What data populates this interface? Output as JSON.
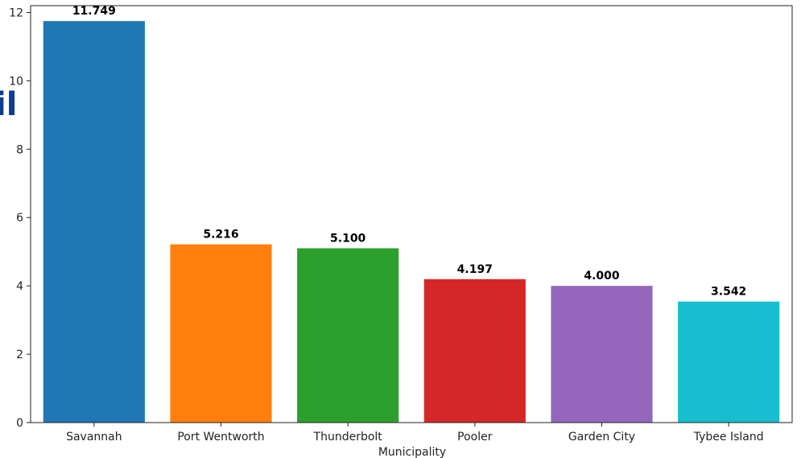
{
  "chart_data": {
    "type": "bar",
    "title": "",
    "xlabel": "Municipality",
    "ylabel": "",
    "categories": [
      "Savannah",
      "Port Wentworth",
      "Thunderbolt",
      "Pooler",
      "Garden City",
      "Tybee Island"
    ],
    "values": [
      11.749,
      5.216,
      5.1,
      4.197,
      4.0,
      3.542
    ],
    "value_labels": [
      "11.749",
      "5.216",
      "5.100",
      "4.197",
      "4.000",
      "3.542"
    ],
    "colors": [
      "#1f77b4",
      "#ff7f0e",
      "#2ca02c",
      "#d62728",
      "#9467bd",
      "#17becf"
    ],
    "ylim": [
      0,
      12.2
    ],
    "yticks": [
      0,
      2,
      4,
      6,
      8,
      10,
      12
    ],
    "ytick_labels": [
      "0",
      "2",
      "4",
      "6",
      "8",
      "10",
      "12"
    ],
    "grid": false,
    "legend": "none"
  },
  "background_fragment": {
    "text": "il",
    "color": "#0b3d91"
  }
}
